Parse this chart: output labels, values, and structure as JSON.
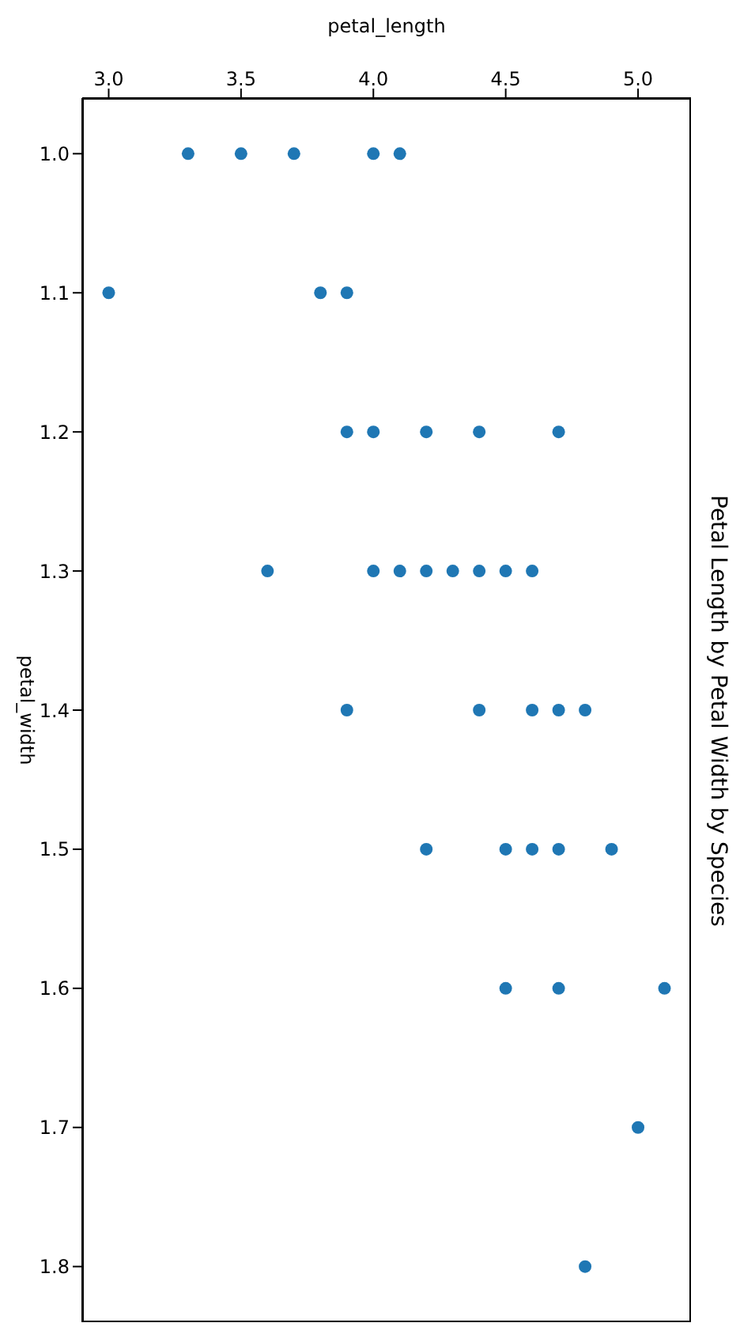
{
  "chart_data": {
    "type": "scatter",
    "title": "Petal Length by Petal Width by Species",
    "xlabel": "petal_length",
    "ylabel": "petal_width",
    "x": [
      3.3,
      3.5,
      3.7,
      4.0,
      4.1,
      3.0,
      3.8,
      3.9,
      3.9,
      4.0,
      4.2,
      4.4,
      4.7,
      3.6,
      4.0,
      4.1,
      4.2,
      4.3,
      4.4,
      4.5,
      4.6,
      3.9,
      4.4,
      4.6,
      4.7,
      4.8,
      4.2,
      4.5,
      4.6,
      4.7,
      4.9,
      4.5,
      4.7,
      5.1,
      5.0,
      4.8
    ],
    "values": [
      1.0,
      1.0,
      1.0,
      1.0,
      1.0,
      1.1,
      1.1,
      1.1,
      1.2,
      1.2,
      1.2,
      1.2,
      1.2,
      1.3,
      1.3,
      1.3,
      1.3,
      1.3,
      1.3,
      1.3,
      1.3,
      1.4,
      1.4,
      1.4,
      1.4,
      1.4,
      1.5,
      1.5,
      1.5,
      1.5,
      1.5,
      1.6,
      1.6,
      1.6,
      1.7,
      1.8
    ],
    "color": "#1f77b4",
    "marker": "circle",
    "grid": false,
    "legend": false,
    "xlim": [
      2.9,
      5.2
    ],
    "xticks": [
      {
        "value": 3.0,
        "label": "3.0"
      },
      {
        "value": 3.5,
        "label": "3.5"
      },
      {
        "value": 4.0,
        "label": "4.0"
      },
      {
        "value": 4.5,
        "label": "4.5"
      },
      {
        "value": 5.0,
        "label": "5.0"
      }
    ],
    "ylim": [
      1.84,
      0.96
    ],
    "yticks": [
      {
        "value": 1.0,
        "label": "1.0"
      },
      {
        "value": 1.1,
        "label": "1.1"
      },
      {
        "value": 1.2,
        "label": "1.2"
      },
      {
        "value": 1.3,
        "label": "1.3"
      },
      {
        "value": 1.4,
        "label": "1.4"
      },
      {
        "value": 1.5,
        "label": "1.5"
      },
      {
        "value": 1.6,
        "label": "1.6"
      },
      {
        "value": 1.7,
        "label": "1.7"
      },
      {
        "value": 1.8,
        "label": "1.8"
      }
    ]
  }
}
